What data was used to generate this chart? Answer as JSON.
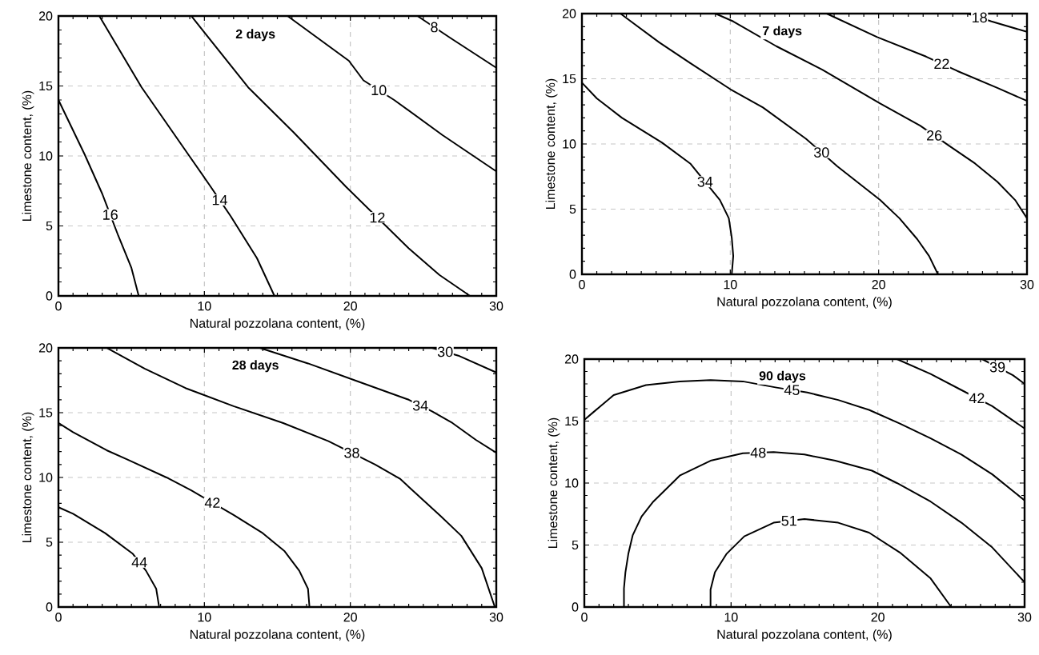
{
  "chart_data": [
    {
      "type": "line",
      "title": "2 days",
      "xlabel": "Natural  pozzolana content, (%)",
      "ylabel": "Limestone content, (%)",
      "xlim": [
        0,
        30
      ],
      "ylim": [
        0,
        20
      ],
      "xticks": [
        0,
        10,
        20,
        30
      ],
      "yticks": [
        0,
        5,
        10,
        15,
        20
      ],
      "grid": true,
      "series": [
        {
          "name": "16",
          "color": "#000000",
          "x": [
            0,
            1.8,
            3.0,
            4.1,
            5.0,
            5.5
          ],
          "values": [
            14,
            10.1,
            7.3,
            4.3,
            2.0,
            0
          ]
        },
        {
          "name": "14",
          "color": "#000000",
          "x": [
            2.8,
            5.7,
            8.9,
            10.3,
            11.8,
            13.6,
            14.8
          ],
          "values": [
            20,
            14.9,
            10.1,
            8.0,
            5.7,
            2.7,
            0
          ]
        },
        {
          "name": "12",
          "color": "#000000",
          "x": [
            9.1,
            13.0,
            16.1,
            19.7,
            24.0,
            26.1,
            28.2
          ],
          "values": [
            20,
            14.9,
            11.7,
            7.8,
            3.4,
            1.5,
            0
          ]
        },
        {
          "name": "10",
          "color": "#000000",
          "x": [
            15.7,
            19.9,
            20.9,
            23.0,
            26.3,
            30
          ],
          "values": [
            20,
            16.8,
            15.4,
            14.0,
            11.5,
            8.9
          ]
        },
        {
          "name": "8",
          "color": "#000000",
          "x": [
            24.6,
            26.9,
            30
          ],
          "values": [
            20,
            18.4,
            16.3
          ]
        }
      ]
    },
    {
      "type": "line",
      "title": "7 days",
      "xlabel": "Natural pozzolana content, (%)",
      "ylabel": "Limestone content, (%)",
      "xlim": [
        0,
        30
      ],
      "ylim": [
        0,
        20
      ],
      "xticks": [
        0,
        10,
        20,
        30
      ],
      "yticks": [
        0,
        5,
        10,
        15,
        20
      ],
      "grid": true,
      "series": [
        {
          "name": "34",
          "color": "#000000",
          "x": [
            0,
            1.0,
            2.7,
            5.4,
            7.3,
            9.3,
            9.9,
            10.1,
            10.2,
            10.1
          ],
          "values": [
            14.7,
            13.5,
            12.0,
            10.1,
            8.5,
            5.7,
            4.3,
            2.8,
            1.4,
            0
          ]
        },
        {
          "name": "30",
          "color": "#000000",
          "x": [
            2.6,
            3.3,
            5.2,
            7.3,
            10.0,
            12.2,
            15.1,
            17.2,
            20.1,
            21.4,
            22.6,
            23.4,
            24.0
          ],
          "values": [
            20,
            19.4,
            17.8,
            16.2,
            14.2,
            12.8,
            10.4,
            8.3,
            5.7,
            4.3,
            2.7,
            1.4,
            0
          ]
        },
        {
          "name": "26",
          "color": "#000000",
          "x": [
            9.0,
            10.2,
            13.1,
            16.2,
            20.1,
            22.8,
            24.7,
            26.5,
            28.0,
            29.2,
            30
          ],
          "values": [
            20,
            19.4,
            17.5,
            15.7,
            13.1,
            11.4,
            9.9,
            8.5,
            7.1,
            5.7,
            4.3
          ]
        },
        {
          "name": "22",
          "color": "#000000",
          "x": [
            16.5,
            19.9,
            23.2,
            25.3,
            28.0,
            30
          ],
          "values": [
            20,
            18.2,
            16.7,
            15.6,
            14.3,
            13.3
          ]
        },
        {
          "name": "18",
          "color": "#000000",
          "x": [
            26.0,
            27.6,
            30
          ],
          "values": [
            20,
            19.4,
            18.6
          ]
        }
      ]
    },
    {
      "type": "line",
      "title": "28 days",
      "xlabel": "Natural  pozzolana content, (%)",
      "ylabel": "Limestone content, (%)",
      "xlim": [
        0,
        30
      ],
      "ylim": [
        0,
        20
      ],
      "xticks": [
        0,
        10,
        20,
        30
      ],
      "yticks": [
        0,
        5,
        10,
        15,
        20
      ],
      "grid": true,
      "series": [
        {
          "name": "44",
          "color": "#000000",
          "x": [
            0,
            1.0,
            3.2,
            5.1,
            6.0,
            6.7,
            6.9
          ],
          "values": [
            7.7,
            7.2,
            5.7,
            4.1,
            2.8,
            1.4,
            0
          ]
        },
        {
          "name": "42",
          "color": "#000000",
          "x": [
            0,
            1.0,
            3.3,
            4.7,
            7.4,
            9.1,
            12.0,
            14.0,
            15.5,
            16.5,
            17.1,
            17.2
          ],
          "values": [
            14.2,
            13.5,
            12.1,
            11.4,
            10.0,
            9.0,
            7.1,
            5.7,
            4.3,
            2.8,
            1.4,
            0
          ]
        },
        {
          "name": "38",
          "color": "#000000",
          "x": [
            3.3,
            5.9,
            8.7,
            12.0,
            15.4,
            18.5,
            21.7,
            23.4,
            26.2,
            27.6,
            29.0,
            29.9
          ],
          "values": [
            20,
            18.4,
            16.9,
            15.5,
            14.2,
            12.8,
            11.0,
            9.9,
            7.0,
            5.5,
            3.0,
            0
          ]
        },
        {
          "name": "34",
          "color": "#000000",
          "x": [
            13.8,
            17.1,
            20.3,
            24.0,
            25.6,
            27.0,
            28.6,
            30
          ],
          "values": [
            20,
            18.8,
            17.5,
            16.0,
            15.1,
            14.2,
            12.9,
            11.9
          ]
        },
        {
          "name": "30",
          "color": "#000000",
          "x": [
            25.6,
            27.4,
            30
          ],
          "values": [
            20,
            19.4,
            18.1
          ]
        }
      ]
    },
    {
      "type": "line",
      "title": "90 days",
      "xlabel": "Natural  pozzolana content, (%)",
      "ylabel": "Limestone content, (%)",
      "xlim": [
        0,
        30
      ],
      "ylim": [
        0,
        20
      ],
      "xticks": [
        0,
        10,
        20,
        30
      ],
      "yticks": [
        0,
        5,
        10,
        15,
        20
      ],
      "grid": true,
      "series": [
        {
          "name": "51",
          "color": "#000000",
          "x": [
            8.6,
            8.6,
            8.9,
            9.7,
            10.9,
            12.9,
            15.0,
            17.3,
            19.4,
            21.5,
            23.6,
            25.0
          ],
          "values": [
            0,
            1.4,
            2.8,
            4.3,
            5.7,
            6.8,
            7.1,
            6.8,
            6.0,
            4.4,
            2.3,
            0
          ]
        },
        {
          "name": "48",
          "color": "#000000",
          "x": [
            2.7,
            2.7,
            2.8,
            3.0,
            3.3,
            3.9,
            4.7,
            6.5,
            8.6,
            10.8,
            12.9,
            15.0,
            17.1,
            19.6,
            21.3,
            23.6,
            25.7,
            27.8,
            30
          ],
          "values": [
            0,
            1.5,
            2.8,
            4.3,
            5.8,
            7.3,
            8.5,
            10.6,
            11.8,
            12.4,
            12.5,
            12.3,
            11.8,
            11.0,
            10.0,
            8.5,
            6.8,
            4.8,
            2.0
          ]
        },
        {
          "name": "45",
          "color": "#000000",
          "x": [
            0,
            0.6,
            2.0,
            4.2,
            6.5,
            8.6,
            10.8,
            13.1,
            15.2,
            17.3,
            19.4,
            21.5,
            23.6,
            25.7,
            27.8,
            30
          ],
          "values": [
            15.1,
            15.7,
            17.1,
            17.9,
            18.2,
            18.3,
            18.2,
            17.7,
            17.3,
            16.7,
            15.9,
            14.8,
            13.6,
            12.3,
            10.7,
            8.6
          ]
        },
        {
          "name": "42",
          "color": "#000000",
          "x": [
            21.3,
            23.6,
            25.7,
            27.8,
            30
          ],
          "values": [
            20,
            18.8,
            17.5,
            16.2,
            14.4
          ]
        },
        {
          "name": "39",
          "color": "#000000",
          "x": [
            27.1,
            29.2,
            30
          ],
          "values": [
            20,
            18.7,
            18.0
          ]
        }
      ]
    }
  ]
}
